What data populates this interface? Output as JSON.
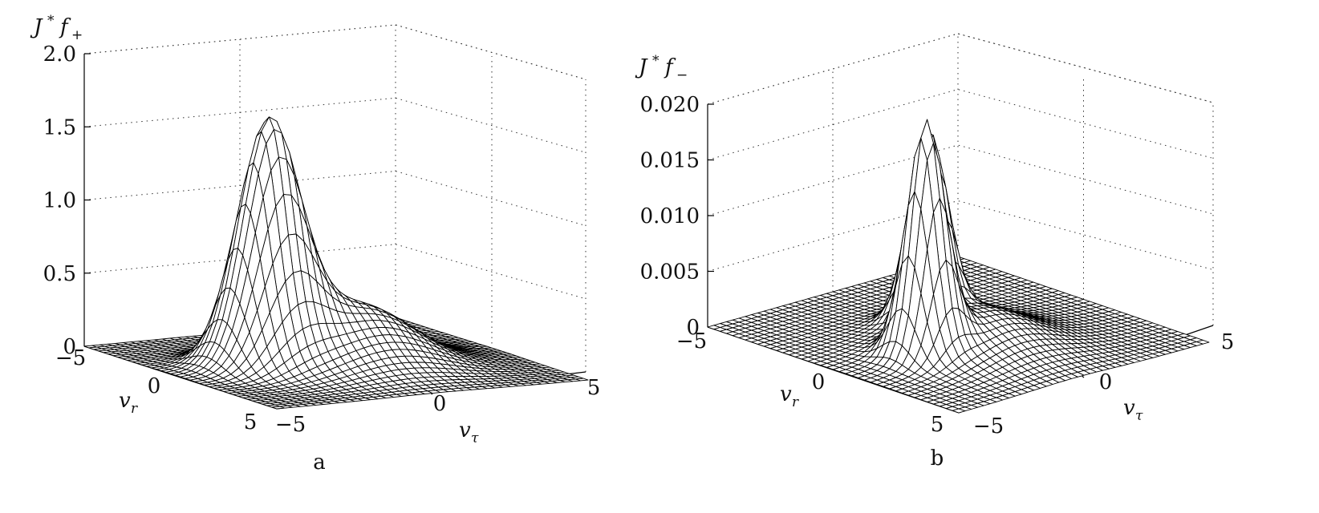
{
  "chart_data": [
    {
      "type": "surface",
      "caption": "a",
      "zlabel": {
        "base": "J",
        "sup": "*",
        "main": "f",
        "sub": "+"
      },
      "xlabel": {
        "main": "v",
        "sub": "r"
      },
      "ylabel": {
        "main": "v",
        "sub": "τ"
      },
      "z_ticks": [
        "0",
        "0.5",
        "1.0",
        "1.5",
        "2.0"
      ],
      "z_tick_values": [
        0,
        0.5,
        1.0,
        1.5,
        2.0
      ],
      "zlim": [
        0,
        2.0
      ],
      "vr_ticks": [
        "−5",
        "0",
        "5"
      ],
      "vr_tick_values": [
        -5,
        0,
        5
      ],
      "vt_ticks": [
        "−5",
        "0",
        "5"
      ],
      "vt_tick_values": [
        -5,
        0,
        5
      ],
      "xlim": [
        -5,
        5
      ],
      "ylim": [
        -5,
        5
      ],
      "grid": true,
      "grid_n": 41,
      "peaks": [
        {
          "vr": -0.3,
          "vt": -2.0,
          "height": 1.58,
          "sigma_r": 0.9,
          "sigma_t": 0.85
        },
        {
          "vr": 0.5,
          "vt": 0.3,
          "height": 0.42,
          "sigma_r": 1.6,
          "sigma_t": 1.6
        }
      ]
    },
    {
      "type": "surface",
      "caption": "b",
      "zlabel": {
        "base": "J",
        "sup": "*",
        "main": "f",
        "sub": "−"
      },
      "xlabel": {
        "main": "v",
        "sub": "r"
      },
      "ylabel": {
        "main": "v",
        "sub": "τ"
      },
      "z_ticks": [
        "0",
        "0.005",
        "0.010",
        "0.015",
        "0.020"
      ],
      "z_tick_values": [
        0,
        0.005,
        0.01,
        0.015,
        0.02
      ],
      "zlim": [
        0,
        0.02
      ],
      "vr_ticks": [
        "−5",
        "0",
        "5"
      ],
      "vr_tick_values": [
        -5,
        0,
        5
      ],
      "vt_ticks": [
        "−5",
        "0",
        "5"
      ],
      "vt_tick_values": [
        -5,
        0,
        5
      ],
      "xlim": [
        -5,
        5
      ],
      "ylim": [
        -5,
        5
      ],
      "grid": true,
      "grid_n": 41,
      "peaks": [
        {
          "vr": 1.0,
          "vt": -2.3,
          "height": 0.0198,
          "sigma_r": 0.55,
          "sigma_t": 0.55
        },
        {
          "vr": -0.9,
          "vt": -0.3,
          "height": 0.0165,
          "sigma_r": 0.55,
          "sigma_t": 0.55
        },
        {
          "vr": 1.2,
          "vt": -0.4,
          "height": 0.0035,
          "sigma_r": 1.6,
          "sigma_t": 1.6
        }
      ]
    }
  ]
}
